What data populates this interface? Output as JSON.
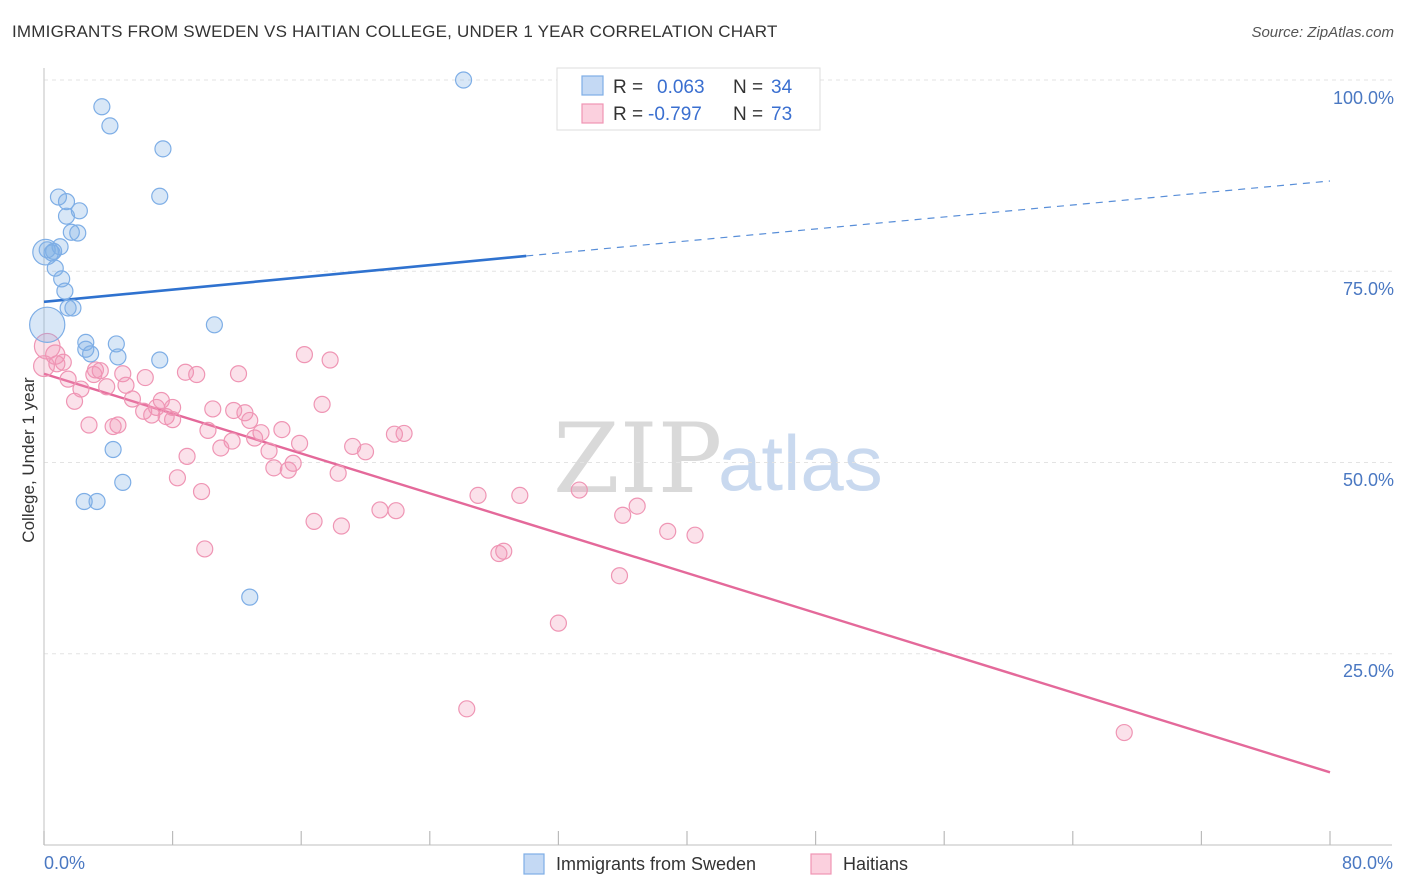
{
  "title": "IMMIGRANTS FROM SWEDEN VS HAITIAN COLLEGE, UNDER 1 YEAR CORRELATION CHART",
  "source": "Source: ZipAtlas.com",
  "watermark": {
    "zip": "ZIP",
    "atlas": "atlas"
  },
  "colors": {
    "blue": "#7eaee6",
    "blue_line": "#2f72cf",
    "pink": "#ef95b4",
    "pink_line": "#e4699a",
    "tick": "#4a78c2"
  },
  "legend": {
    "rows": [
      {
        "r_label": "R =",
        "r_value": "0.063",
        "n_label": "N =",
        "n_value": "34"
      },
      {
        "r_label": "R =",
        "r_value": "-0.797",
        "n_label": "N =",
        "n_value": "73"
      }
    ]
  },
  "chart_data": {
    "type": "scatter",
    "title": "IMMIGRANTS FROM SWEDEN VS HAITIAN COLLEGE, UNDER 1 YEAR CORRELATION CHART",
    "xlabel": "",
    "ylabel": "College, Under 1 year",
    "xlim": [
      0,
      80
    ],
    "ylim": [
      0,
      105
    ],
    "x_tick_labels": [
      "0.0%",
      "80.0%"
    ],
    "y_ticks": [
      25,
      50,
      75,
      100
    ],
    "y_tick_labels": [
      "25.0%",
      "50.0%",
      "75.0%",
      "100.0%"
    ],
    "grid": true,
    "series": [
      {
        "name": "Immigrants from Sweden",
        "color": "#7eaee6",
        "r": 0.063,
        "n": 34,
        "trend": {
          "x0": 0,
          "y0": 71.0,
          "x1": 30,
          "y1": 77.0,
          "x_dash_end": 80,
          "y_dash_end": 86.8
        },
        "points": [
          [
            26.1,
            100.0
          ],
          [
            3.6,
            96.5
          ],
          [
            4.1,
            94.0
          ],
          [
            7.4,
            91.0
          ],
          [
            7.2,
            84.8
          ],
          [
            0.9,
            84.7
          ],
          [
            1.4,
            84.1
          ],
          [
            2.2,
            82.9
          ],
          [
            1.4,
            82.2
          ],
          [
            1.7,
            80.1
          ],
          [
            2.1,
            80.0
          ],
          [
            1.0,
            78.2
          ],
          [
            0.2,
            77.8
          ],
          [
            0.6,
            77.6
          ],
          [
            0.5,
            77.4
          ],
          [
            0.7,
            75.4
          ],
          [
            1.1,
            74.0
          ],
          [
            1.3,
            72.4
          ],
          [
            1.5,
            70.2
          ],
          [
            1.8,
            70.2
          ],
          [
            0.2,
            68.0
          ],
          [
            10.6,
            68.0
          ],
          [
            2.6,
            65.7
          ],
          [
            4.5,
            65.5
          ],
          [
            2.6,
            64.8
          ],
          [
            2.9,
            64.2
          ],
          [
            4.6,
            63.8
          ],
          [
            7.2,
            63.4
          ],
          [
            4.3,
            51.7
          ],
          [
            4.9,
            47.4
          ],
          [
            2.5,
            44.9
          ],
          [
            3.3,
            44.9
          ],
          [
            12.8,
            32.4
          ],
          [
            0.1,
            77.5
          ]
        ],
        "sizes": [
          1,
          1,
          1,
          1,
          1,
          1,
          1,
          1,
          1,
          1,
          1,
          1,
          1,
          1,
          1,
          1,
          1,
          1,
          1,
          1,
          2.2,
          1,
          1,
          1,
          1,
          1,
          1,
          1,
          1,
          1,
          1,
          1,
          1,
          1.6
        ]
      },
      {
        "name": "Haitians",
        "color": "#ef95b4",
        "r": -0.797,
        "n": 73,
        "trend": {
          "x0": 0,
          "y0": 61.6,
          "x1": 80,
          "y1": 9.5
        },
        "points": [
          [
            0.2,
            65.2
          ],
          [
            0.7,
            64.1
          ],
          [
            1.2,
            63.1
          ],
          [
            0.8,
            62.9
          ],
          [
            3.2,
            62.1
          ],
          [
            3.5,
            62.0
          ],
          [
            4.9,
            61.6
          ],
          [
            3.1,
            61.5
          ],
          [
            6.3,
            61.1
          ],
          [
            8.8,
            61.8
          ],
          [
            9.5,
            61.5
          ],
          [
            12.1,
            61.6
          ],
          [
            16.2,
            64.1
          ],
          [
            17.8,
            63.4
          ],
          [
            1.5,
            60.9
          ],
          [
            2.3,
            59.6
          ],
          [
            5.1,
            60.1
          ],
          [
            3.9,
            59.9
          ],
          [
            5.5,
            58.3
          ],
          [
            7.3,
            58.1
          ],
          [
            1.9,
            58.0
          ],
          [
            17.3,
            57.6
          ],
          [
            7.0,
            57.2
          ],
          [
            8.0,
            57.2
          ],
          [
            10.5,
            57.0
          ],
          [
            11.8,
            56.8
          ],
          [
            6.2,
            56.7
          ],
          [
            6.7,
            56.2
          ],
          [
            12.5,
            56.5
          ],
          [
            7.6,
            56.0
          ],
          [
            8.0,
            55.6
          ],
          [
            12.8,
            55.5
          ],
          [
            4.6,
            54.9
          ],
          [
            2.8,
            54.9
          ],
          [
            4.3,
            54.7
          ],
          [
            10.2,
            54.2
          ],
          [
            13.5,
            53.9
          ],
          [
            14.8,
            54.3
          ],
          [
            13.1,
            53.2
          ],
          [
            11.7,
            52.8
          ],
          [
            15.9,
            52.5
          ],
          [
            11.0,
            51.9
          ],
          [
            19.2,
            52.1
          ],
          [
            20.0,
            51.4
          ],
          [
            14.0,
            51.5
          ],
          [
            22.4,
            53.8
          ],
          [
            21.8,
            53.7
          ],
          [
            8.9,
            50.8
          ],
          [
            15.5,
            49.9
          ],
          [
            14.3,
            49.3
          ],
          [
            15.2,
            49.0
          ],
          [
            18.3,
            48.6
          ],
          [
            8.3,
            48.0
          ],
          [
            9.8,
            46.2
          ],
          [
            27.0,
            45.7
          ],
          [
            29.6,
            45.7
          ],
          [
            33.3,
            46.4
          ],
          [
            36.9,
            44.3
          ],
          [
            20.9,
            43.8
          ],
          [
            21.9,
            43.7
          ],
          [
            36.0,
            43.1
          ],
          [
            16.8,
            42.3
          ],
          [
            18.5,
            41.7
          ],
          [
            38.8,
            41.0
          ],
          [
            40.5,
            40.5
          ],
          [
            10.0,
            38.7
          ],
          [
            28.6,
            38.4
          ],
          [
            28.3,
            38.1
          ],
          [
            35.8,
            35.2
          ],
          [
            32.0,
            29.0
          ],
          [
            26.3,
            17.8
          ],
          [
            67.2,
            14.7
          ],
          [
            0.0,
            62.6
          ]
        ],
        "sizes": [
          1.6,
          1.2,
          1,
          1,
          1,
          1,
          1,
          1,
          1,
          1,
          1,
          1,
          1,
          1,
          1,
          1,
          1,
          1,
          1,
          1,
          1,
          1,
          1,
          1,
          1,
          1,
          1,
          1,
          1,
          1,
          1,
          1,
          1,
          1,
          1,
          1,
          1,
          1,
          1,
          1,
          1,
          1,
          1,
          1,
          1,
          1,
          1,
          1,
          1,
          1,
          1,
          1,
          1,
          1,
          1,
          1,
          1,
          1,
          1,
          1,
          1,
          1,
          1,
          1,
          1,
          1,
          1,
          1,
          1,
          1,
          1,
          1,
          1.3
        ]
      }
    ]
  }
}
